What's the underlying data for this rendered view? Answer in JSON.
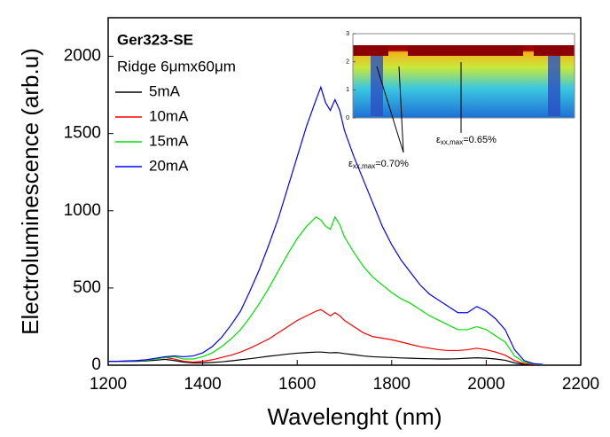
{
  "chart_data": {
    "type": "line",
    "xlabel": "Wavelenght (nm)",
    "ylabel": "Electroluminescence (arb.u)",
    "legend_title": [
      "Ger323-SE",
      "Ridge 6μmx60μm"
    ],
    "legend": "upper left",
    "xlim": [
      1200,
      2200
    ],
    "xticks": [
      1200,
      1400,
      1600,
      1800,
      2000,
      2200
    ],
    "ylim": [
      0,
      2250
    ],
    "yticks": [
      0,
      500,
      1000,
      1500,
      2000
    ],
    "x": [
      1200,
      1220,
      1240,
      1260,
      1280,
      1300,
      1320,
      1340,
      1360,
      1380,
      1400,
      1420,
      1440,
      1460,
      1480,
      1500,
      1520,
      1540,
      1560,
      1580,
      1600,
      1620,
      1640,
      1650,
      1660,
      1670,
      1680,
      1690,
      1700,
      1720,
      1740,
      1760,
      1780,
      1800,
      1820,
      1840,
      1860,
      1880,
      1900,
      1920,
      1940,
      1960,
      1980,
      2000,
      2020,
      2040,
      2060,
      2080,
      2100,
      2120
    ],
    "series": [
      {
        "name": "5mA",
        "color": "#000000",
        "values": [
          25,
          25,
          25,
          25,
          28,
          32,
          38,
          30,
          20,
          15,
          15,
          18,
          22,
          28,
          35,
          42,
          50,
          58,
          65,
          72,
          78,
          82,
          85,
          85,
          83,
          80,
          82,
          80,
          75,
          68,
          60,
          55,
          52,
          50,
          47,
          45,
          43,
          42,
          40,
          40,
          42,
          45,
          48,
          45,
          40,
          32,
          15,
          5,
          2,
          1
        ]
      },
      {
        "name": "10mA",
        "color": "#ff0000",
        "values": [
          25,
          25,
          26,
          28,
          32,
          40,
          50,
          40,
          25,
          20,
          25,
          35,
          50,
          65,
          85,
          110,
          140,
          170,
          210,
          250,
          290,
          320,
          350,
          360,
          340,
          320,
          340,
          320,
          290,
          250,
          210,
          185,
          175,
          165,
          150,
          135,
          120,
          110,
          100,
          95,
          95,
          100,
          110,
          100,
          85,
          65,
          30,
          10,
          5,
          2
        ]
      },
      {
        "name": "15mA",
        "color": "#00e000",
        "values": [
          25,
          25,
          27,
          28,
          32,
          40,
          50,
          55,
          40,
          40,
          55,
          80,
          120,
          170,
          230,
          310,
          400,
          500,
          610,
          720,
          820,
          900,
          960,
          940,
          900,
          880,
          960,
          910,
          830,
          730,
          640,
          570,
          520,
          470,
          430,
          400,
          360,
          320,
          290,
          260,
          230,
          230,
          250,
          230,
          190,
          150,
          60,
          20,
          8,
          3
        ]
      },
      {
        "name": "20mA",
        "color": "#0000ff",
        "values": [
          25,
          25,
          28,
          30,
          35,
          45,
          55,
          60,
          55,
          60,
          80,
          120,
          180,
          260,
          350,
          480,
          620,
          780,
          950,
          1150,
          1350,
          1550,
          1720,
          1800,
          1700,
          1650,
          1720,
          1650,
          1520,
          1350,
          1200,
          1050,
          900,
          780,
          680,
          600,
          520,
          460,
          420,
          380,
          340,
          340,
          380,
          350,
          300,
          230,
          100,
          30,
          10,
          5
        ]
      }
    ],
    "inset": {
      "ylim": [
        0,
        3
      ],
      "yticks": [
        0,
        1,
        2,
        3
      ],
      "annotations": [
        [
          "ε",
          "xx,max",
          "=0.65%"
        ],
        [
          "ε",
          "xx,max",
          "=0.70%"
        ]
      ]
    }
  }
}
